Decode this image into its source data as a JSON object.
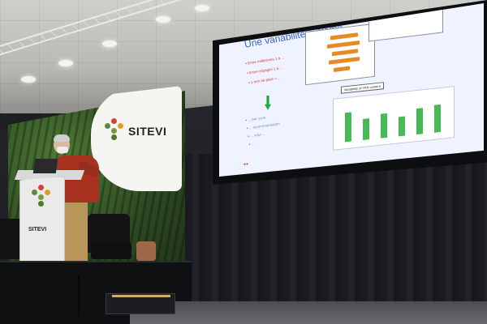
{
  "banner": {
    "brand": "SITEVI"
  },
  "podium": {
    "brand": "SITEVI"
  },
  "slide": {
    "title": "Une variabilité extrême",
    "bullets": [
      "Entre millésimes 1 à ...",
      "Entre cépages 1 à ...",
      "1 mm de pluie ≈ ..."
    ],
    "sub_bullets": [
      "... per cuve",
      "... recommandation",
      "... suivi ...",
      "..."
    ],
    "chart_title": "Variability of YAN content",
    "note": "Yeast assimilable nitrogen ..."
  },
  "colors": {
    "slide_title": "#3366cc",
    "slide_accent_red": "#d43b3b",
    "bar_orange": "#e88a22",
    "bar_green": "#44bb55",
    "shirt": "#a8321f"
  }
}
